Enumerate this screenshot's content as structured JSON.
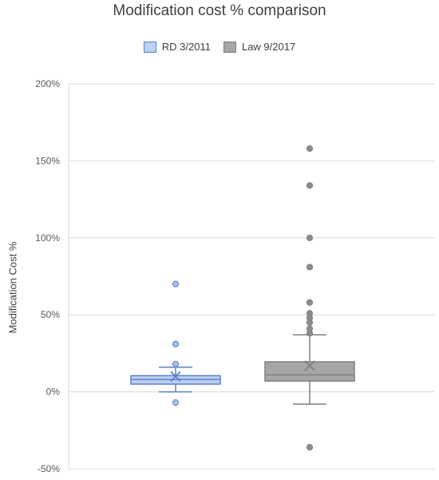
{
  "chart_data": {
    "type": "box",
    "title": "Modification cost % comparison",
    "xlabel": "",
    "ylabel": "Modification Cost %",
    "ylim": [
      -50,
      200
    ],
    "yticks": [
      -50,
      0,
      50,
      100,
      150,
      200
    ],
    "ytick_labels": [
      "-50%",
      "0%",
      "50%",
      "100%",
      "150%",
      "200%"
    ],
    "grid": true,
    "legend_position": "top",
    "series": [
      {
        "name": "RD 3/2011",
        "fill": "#bdd0f2",
        "stroke": "#5b82c8",
        "whisker_low": 0,
        "q1": 5,
        "median": 8,
        "q3": 10.5,
        "whisker_high": 16,
        "mean": 10,
        "outliers": [
          70,
          31,
          18,
          -7
        ]
      },
      {
        "name": "Law 9/2017",
        "fill": "#a6a6a6",
        "stroke": "#7f7f7f",
        "whisker_low": -8,
        "q1": 7,
        "median": 11,
        "q3": 19.5,
        "whisker_high": 37,
        "mean": 17,
        "outliers": [
          158,
          134,
          100,
          81,
          58,
          51,
          48,
          45,
          41,
          38,
          -36
        ]
      }
    ]
  }
}
